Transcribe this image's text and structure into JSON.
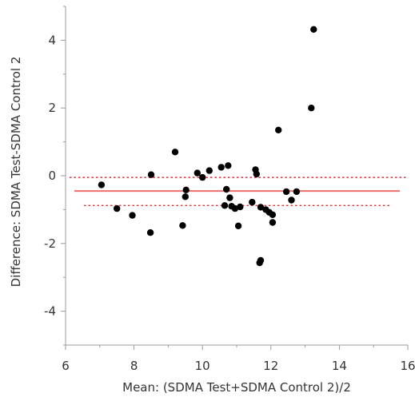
{
  "chart_data": {
    "type": "scatter",
    "title": "",
    "xlabel": "Mean: (SDMA Test+SDMA Control 2)/2",
    "ylabel": "Difference: SDMA Test-SDMA Control 2",
    "xlim": [
      6,
      16
    ],
    "ylim": [
      -5,
      5
    ],
    "x_ticks": [
      "6",
      "8",
      "10",
      "12",
      "14",
      "16"
    ],
    "y_ticks": [
      "4",
      "2",
      "0",
      "-2",
      "-4"
    ],
    "grid": false,
    "colors": {
      "points": "#000000",
      "mean_line": "#f06b6b",
      "limit_lines": "#e0303a",
      "axis": "#9a9a9a"
    },
    "reference_lines": {
      "mean_difference": -0.45,
      "upper_limit": -0.05,
      "lower_limit": -0.88
    },
    "points": [
      {
        "x": 7.05,
        "y": -0.27
      },
      {
        "x": 7.5,
        "y": -0.97
      },
      {
        "x": 7.95,
        "y": -1.17
      },
      {
        "x": 8.5,
        "y": 0.03
      },
      {
        "x": 8.48,
        "y": -1.68
      },
      {
        "x": 9.2,
        "y": 0.7
      },
      {
        "x": 9.42,
        "y": -1.47
      },
      {
        "x": 9.52,
        "y": -0.42
      },
      {
        "x": 9.5,
        "y": -0.62
      },
      {
        "x": 9.85,
        "y": 0.08
      },
      {
        "x": 10.0,
        "y": -0.05
      },
      {
        "x": 10.2,
        "y": 0.15
      },
      {
        "x": 10.55,
        "y": 0.25
      },
      {
        "x": 10.75,
        "y": 0.3
      },
      {
        "x": 10.7,
        "y": -0.4
      },
      {
        "x": 10.8,
        "y": -0.65
      },
      {
        "x": 10.65,
        "y": -0.88
      },
      {
        "x": 10.85,
        "y": -0.9
      },
      {
        "x": 10.95,
        "y": -0.97
      },
      {
        "x": 11.1,
        "y": -0.92
      },
      {
        "x": 11.05,
        "y": -1.48
      },
      {
        "x": 11.45,
        "y": -0.78
      },
      {
        "x": 11.55,
        "y": 0.18
      },
      {
        "x": 11.58,
        "y": 0.05
      },
      {
        "x": 11.7,
        "y": -0.93
      },
      {
        "x": 11.85,
        "y": -1.0
      },
      {
        "x": 11.95,
        "y": -1.08
      },
      {
        "x": 12.05,
        "y": -1.15
      },
      {
        "x": 12.05,
        "y": -1.38
      },
      {
        "x": 11.7,
        "y": -2.5
      },
      {
        "x": 11.67,
        "y": -2.57
      },
      {
        "x": 12.22,
        "y": 1.35
      },
      {
        "x": 12.45,
        "y": -0.47
      },
      {
        "x": 12.6,
        "y": -0.72
      },
      {
        "x": 12.75,
        "y": -0.47
      },
      {
        "x": 13.18,
        "y": 2.0
      },
      {
        "x": 13.25,
        "y": 4.32
      }
    ]
  }
}
